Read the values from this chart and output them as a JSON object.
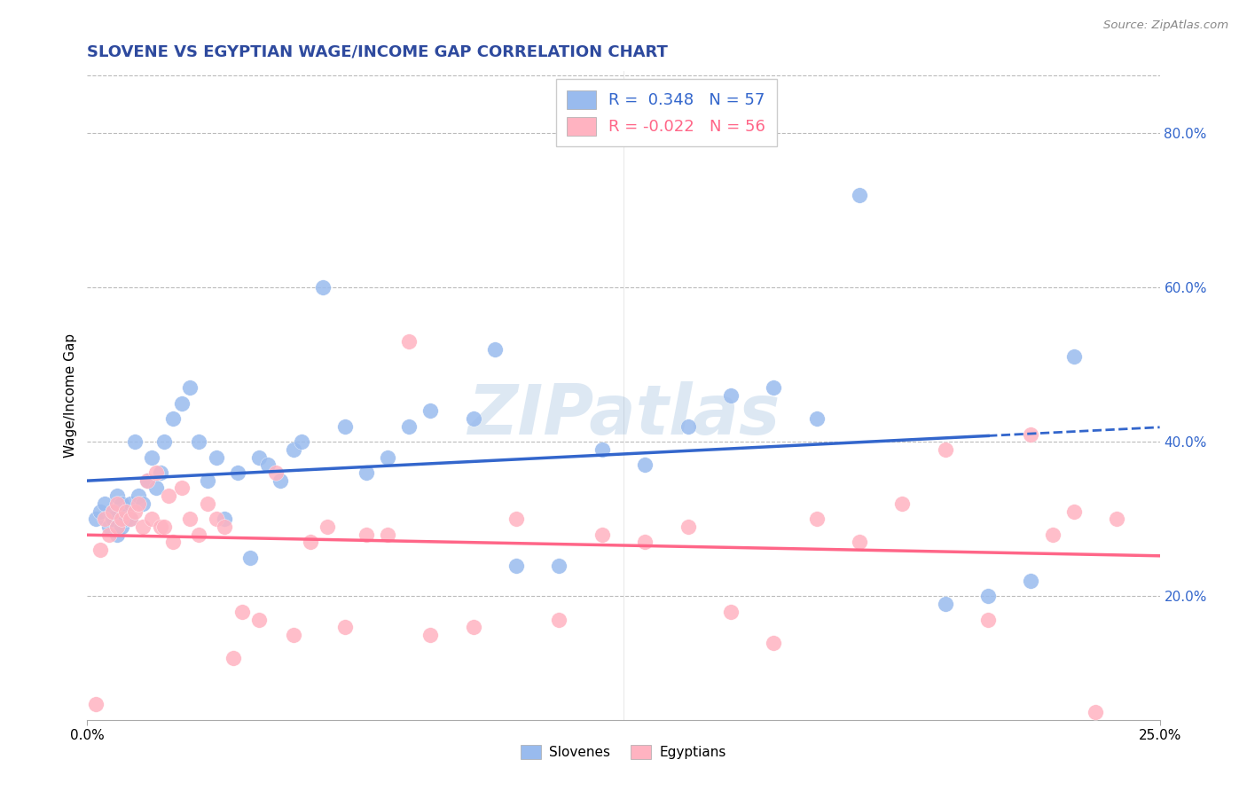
{
  "title": "SLOVENE VS EGYPTIAN WAGE/INCOME GAP CORRELATION CHART",
  "source": "Source: ZipAtlas.com",
  "ylabel": "Wage/Income Gap",
  "title_color": "#2E4A9E",
  "title_fontsize": 13,
  "watermark": "ZIPatlas",
  "watermark_color": "#6699CC",
  "watermark_alpha": 0.22,
  "slovene_color": "#99BBEE",
  "egyptian_color": "#FFB3C1",
  "slovene_line_color": "#3366CC",
  "egyptian_line_color": "#FF6688",
  "slovene_R": 0.348,
  "slovene_N": 57,
  "egyptian_R": -0.022,
  "egyptian_N": 56,
  "legend_label_slovene": "Slovenes",
  "legend_label_egyptian": "Egyptians",
  "xmin": 0.0,
  "xmax": 0.25,
  "ymin": 0.04,
  "ymax": 0.88,
  "slovene_x": [
    0.002,
    0.003,
    0.004,
    0.005,
    0.006,
    0.006,
    0.007,
    0.007,
    0.008,
    0.008,
    0.009,
    0.009,
    0.01,
    0.01,
    0.011,
    0.012,
    0.013,
    0.014,
    0.015,
    0.016,
    0.017,
    0.018,
    0.02,
    0.022,
    0.024,
    0.026,
    0.028,
    0.03,
    0.032,
    0.035,
    0.038,
    0.04,
    0.042,
    0.045,
    0.048,
    0.05,
    0.055,
    0.06,
    0.065,
    0.07,
    0.075,
    0.08,
    0.09,
    0.095,
    0.1,
    0.11,
    0.12,
    0.13,
    0.14,
    0.15,
    0.16,
    0.17,
    0.18,
    0.2,
    0.21,
    0.22,
    0.23
  ],
  "slovene_y": [
    0.3,
    0.31,
    0.32,
    0.29,
    0.3,
    0.31,
    0.28,
    0.33,
    0.29,
    0.32,
    0.31,
    0.3,
    0.32,
    0.3,
    0.4,
    0.33,
    0.32,
    0.35,
    0.38,
    0.34,
    0.36,
    0.4,
    0.43,
    0.45,
    0.47,
    0.4,
    0.35,
    0.38,
    0.3,
    0.36,
    0.25,
    0.38,
    0.37,
    0.35,
    0.39,
    0.4,
    0.6,
    0.42,
    0.36,
    0.38,
    0.42,
    0.44,
    0.43,
    0.52,
    0.24,
    0.24,
    0.39,
    0.37,
    0.42,
    0.46,
    0.47,
    0.43,
    0.72,
    0.19,
    0.2,
    0.22,
    0.51
  ],
  "egyptian_x": [
    0.002,
    0.003,
    0.004,
    0.005,
    0.006,
    0.007,
    0.007,
    0.008,
    0.009,
    0.01,
    0.011,
    0.012,
    0.013,
    0.014,
    0.015,
    0.016,
    0.017,
    0.018,
    0.019,
    0.02,
    0.022,
    0.024,
    0.026,
    0.028,
    0.03,
    0.032,
    0.034,
    0.036,
    0.04,
    0.044,
    0.048,
    0.052,
    0.056,
    0.06,
    0.065,
    0.07,
    0.075,
    0.08,
    0.09,
    0.1,
    0.11,
    0.12,
    0.13,
    0.14,
    0.15,
    0.16,
    0.17,
    0.18,
    0.19,
    0.2,
    0.21,
    0.22,
    0.225,
    0.23,
    0.235,
    0.24
  ],
  "egyptian_y": [
    0.06,
    0.26,
    0.3,
    0.28,
    0.31,
    0.29,
    0.32,
    0.3,
    0.31,
    0.3,
    0.31,
    0.32,
    0.29,
    0.35,
    0.3,
    0.36,
    0.29,
    0.29,
    0.33,
    0.27,
    0.34,
    0.3,
    0.28,
    0.32,
    0.3,
    0.29,
    0.12,
    0.18,
    0.17,
    0.36,
    0.15,
    0.27,
    0.29,
    0.16,
    0.28,
    0.28,
    0.53,
    0.15,
    0.16,
    0.3,
    0.17,
    0.28,
    0.27,
    0.29,
    0.18,
    0.14,
    0.3,
    0.27,
    0.32,
    0.39,
    0.17,
    0.41,
    0.28,
    0.31,
    0.05,
    0.3
  ]
}
